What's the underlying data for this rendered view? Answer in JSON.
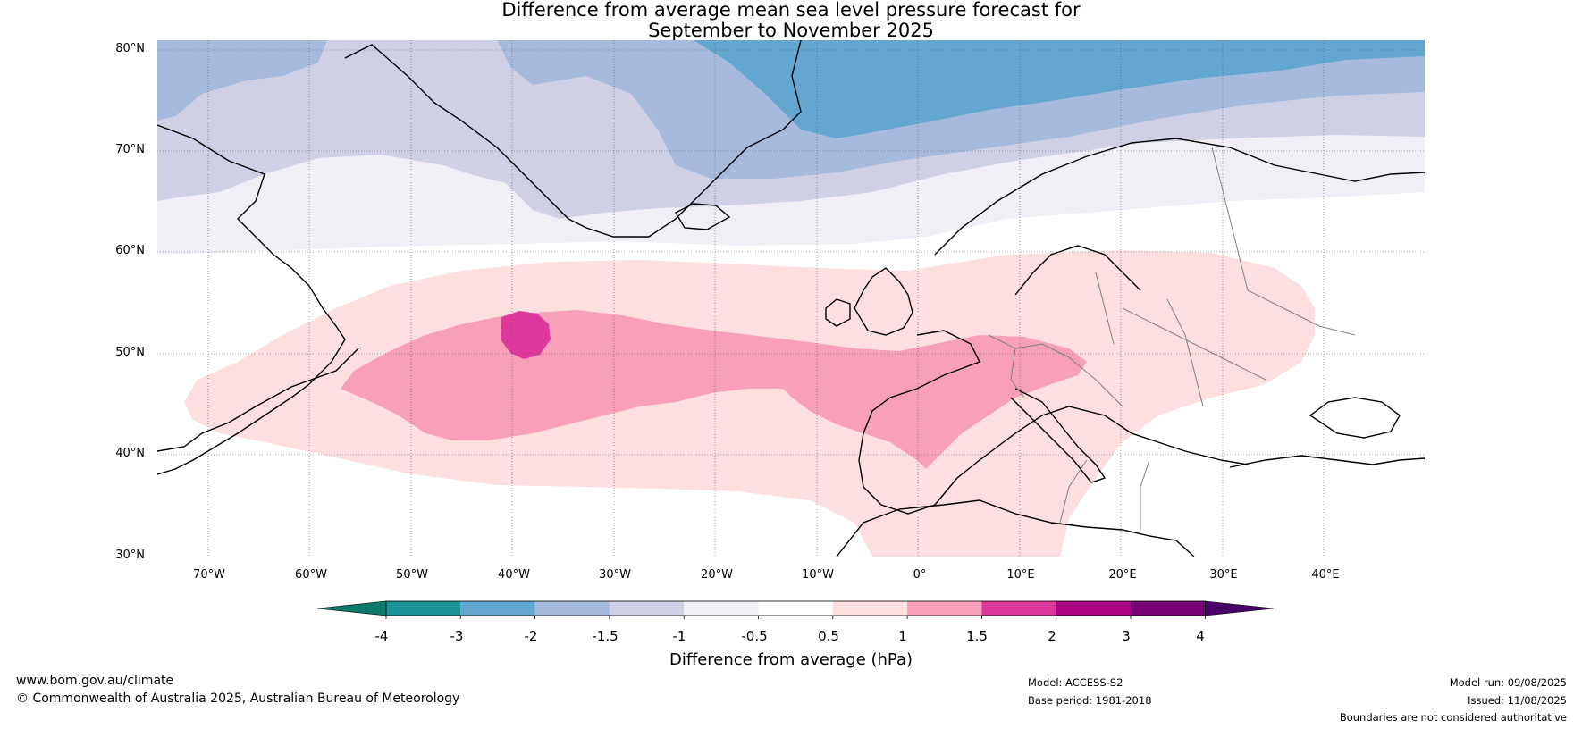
{
  "title": {
    "line1": "Difference from average mean sea level pressure forecast for",
    "line2": "September to November 2025"
  },
  "map": {
    "region": "North Atlantic and Europe",
    "lat_ticks": [
      "80°N",
      "70°N",
      "60°N",
      "50°N",
      "40°N",
      "30°N"
    ],
    "lon_ticks": [
      "70°W",
      "60°W",
      "50°W",
      "40°W",
      "30°W",
      "20°W",
      "10°W",
      "0°",
      "10°E",
      "20°E",
      "30°E",
      "40°E"
    ],
    "gridlines": true,
    "lat_range": [
      30,
      80
    ],
    "lon_range": [
      -75,
      50
    ]
  },
  "colorbar": {
    "title": "Difference from average (hPa)",
    "tick_labels": [
      "-4",
      "-3",
      "-2",
      "-1.5",
      "-1",
      "-0.5",
      "0.5",
      "1",
      "1.5",
      "2",
      "3",
      "4"
    ],
    "low_extend_color": "#0b7a6b",
    "colors": [
      "#1a9499",
      "#63a6cf",
      "#a6badd",
      "#cfd0e6",
      "#f1eef6",
      "#ffffff",
      "#fddfe0",
      "#f89fb9",
      "#de389c",
      "#ac0382",
      "#780076"
    ],
    "high_extend_color": "#4a006a"
  },
  "footer": {
    "website": "www.bom.gov.au/climate",
    "copyright": "© Commonwealth of Australia 2025, Australian Bureau of Meteorology",
    "model": "Model: ACCESS-S2",
    "base_period": "Base period: 1981-2018",
    "model_run": "Model run: 09/08/2025",
    "issued": "Issued: 11/08/2025",
    "disclaimer": "Boundaries are not considered authoritative"
  }
}
